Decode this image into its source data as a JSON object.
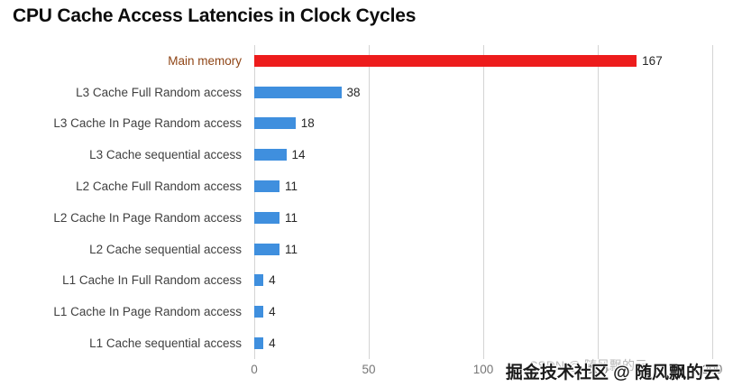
{
  "chart_data": {
    "type": "bar",
    "orientation": "horizontal",
    "title": "CPU Cache Access Latencies in Clock Cycles",
    "categories": [
      "Main memory",
      "L3 Cache Full Random access",
      "L3 Cache In Page Random access",
      "L3 Cache sequential access",
      "L2 Cache Full Random access",
      "L2 Cache In Page Random access",
      "L2 Cache sequential access",
      "L1 Cache In Full Random access",
      "L1 Cache In Page Random access",
      "L1 Cache sequential access"
    ],
    "values": [
      167,
      38,
      18,
      14,
      11,
      11,
      11,
      4,
      4,
      4
    ],
    "bar_colors": [
      "#ed1c1c",
      "#3f8fde",
      "#3f8fde",
      "#3f8fde",
      "#3f8fde",
      "#3f8fde",
      "#3f8fde",
      "#3f8fde",
      "#3f8fde",
      "#3f8fde"
    ],
    "label_colors": [
      "#8f4516",
      "#404040",
      "#404040",
      "#404040",
      "#404040",
      "#404040",
      "#404040",
      "#404040",
      "#404040",
      "#404040"
    ],
    "value_labels": [
      "167",
      "38",
      "18",
      "14",
      "11",
      "11",
      "11",
      "4",
      "4",
      "4"
    ],
    "xlabel": "",
    "ylabel": "",
    "xlim": [
      0,
      200
    ],
    "xticks": [
      0,
      50,
      100,
      150,
      200
    ],
    "grid": true,
    "legend": false
  },
  "watermark": {
    "primary": "掘金技术社区 @ 随风飘的云",
    "secondary": "CSDN @ 随风飘的云"
  }
}
